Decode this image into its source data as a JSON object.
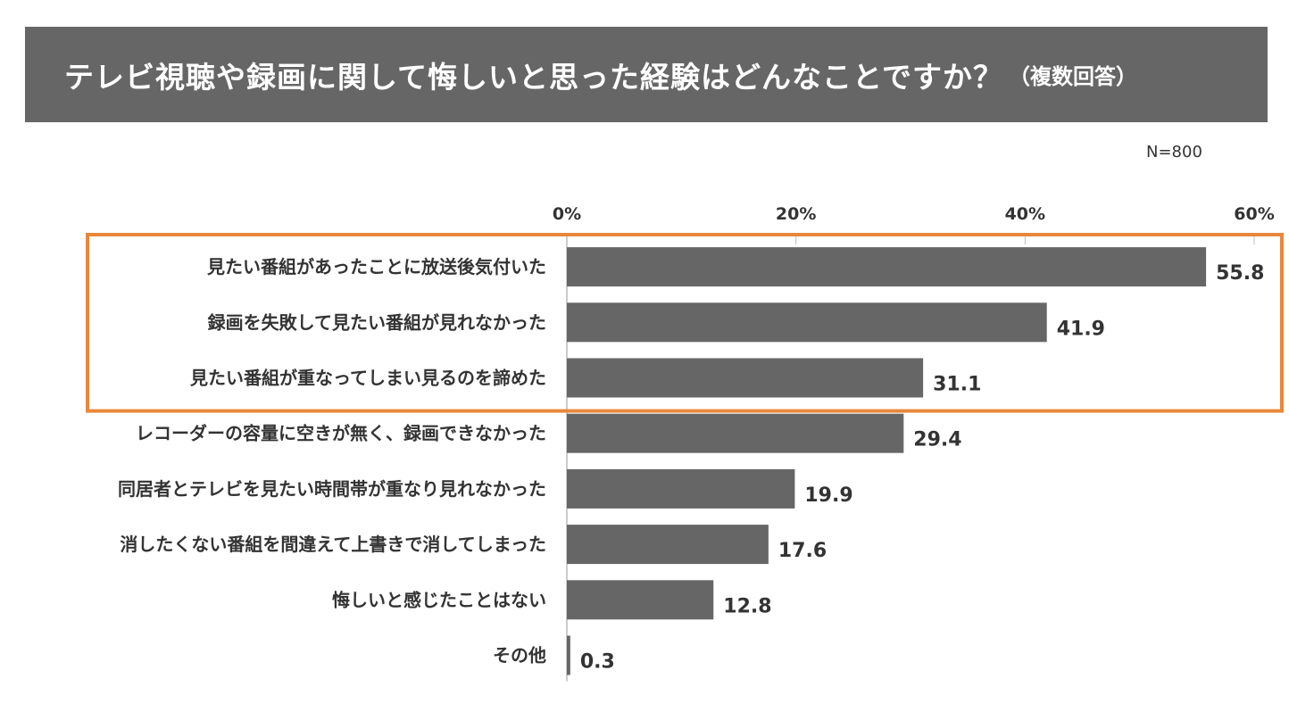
{
  "title": "テレビ視聴や録画に関して悔しいと思った経験はどんなことですか？",
  "subtitle": "（複数回答）",
  "sample_size": "N=800",
  "colors": {
    "bar": "#666666",
    "highlight_border": "#E8873A",
    "title_bg": "#666666"
  },
  "chart_data": {
    "type": "bar",
    "orientation": "horizontal",
    "title": "テレビ視聴や録画に関して悔しいと思った経験はどんなことですか？",
    "xlim": [
      0,
      60
    ],
    "xticks": [
      "0%",
      "20%",
      "40%",
      "60%"
    ],
    "xtick_values": [
      0,
      20,
      40,
      60
    ],
    "categories": [
      "見たい番組があったことに放送後気付いた",
      "録画を失敗して見たい番組が見れなかった",
      "見たい番組が重なってしまい見るのを諦めた",
      "レコーダーの容量に空きが無く、録画できなかった",
      "同居者とテレビを見たい時間帯が重なり見れなかった",
      "消したくない番組を間違えて上書きで消してしまった",
      "悔しいと感じたことはない",
      "その他"
    ],
    "values": [
      55.8,
      41.9,
      31.1,
      29.4,
      19.9,
      17.6,
      12.8,
      0.3
    ],
    "value_labels": [
      "55.8",
      "41.9",
      "31.1",
      "29.4",
      "19.9",
      "17.6",
      "12.8",
      "0.3"
    ],
    "highlighted_count": 3,
    "grid": false
  }
}
